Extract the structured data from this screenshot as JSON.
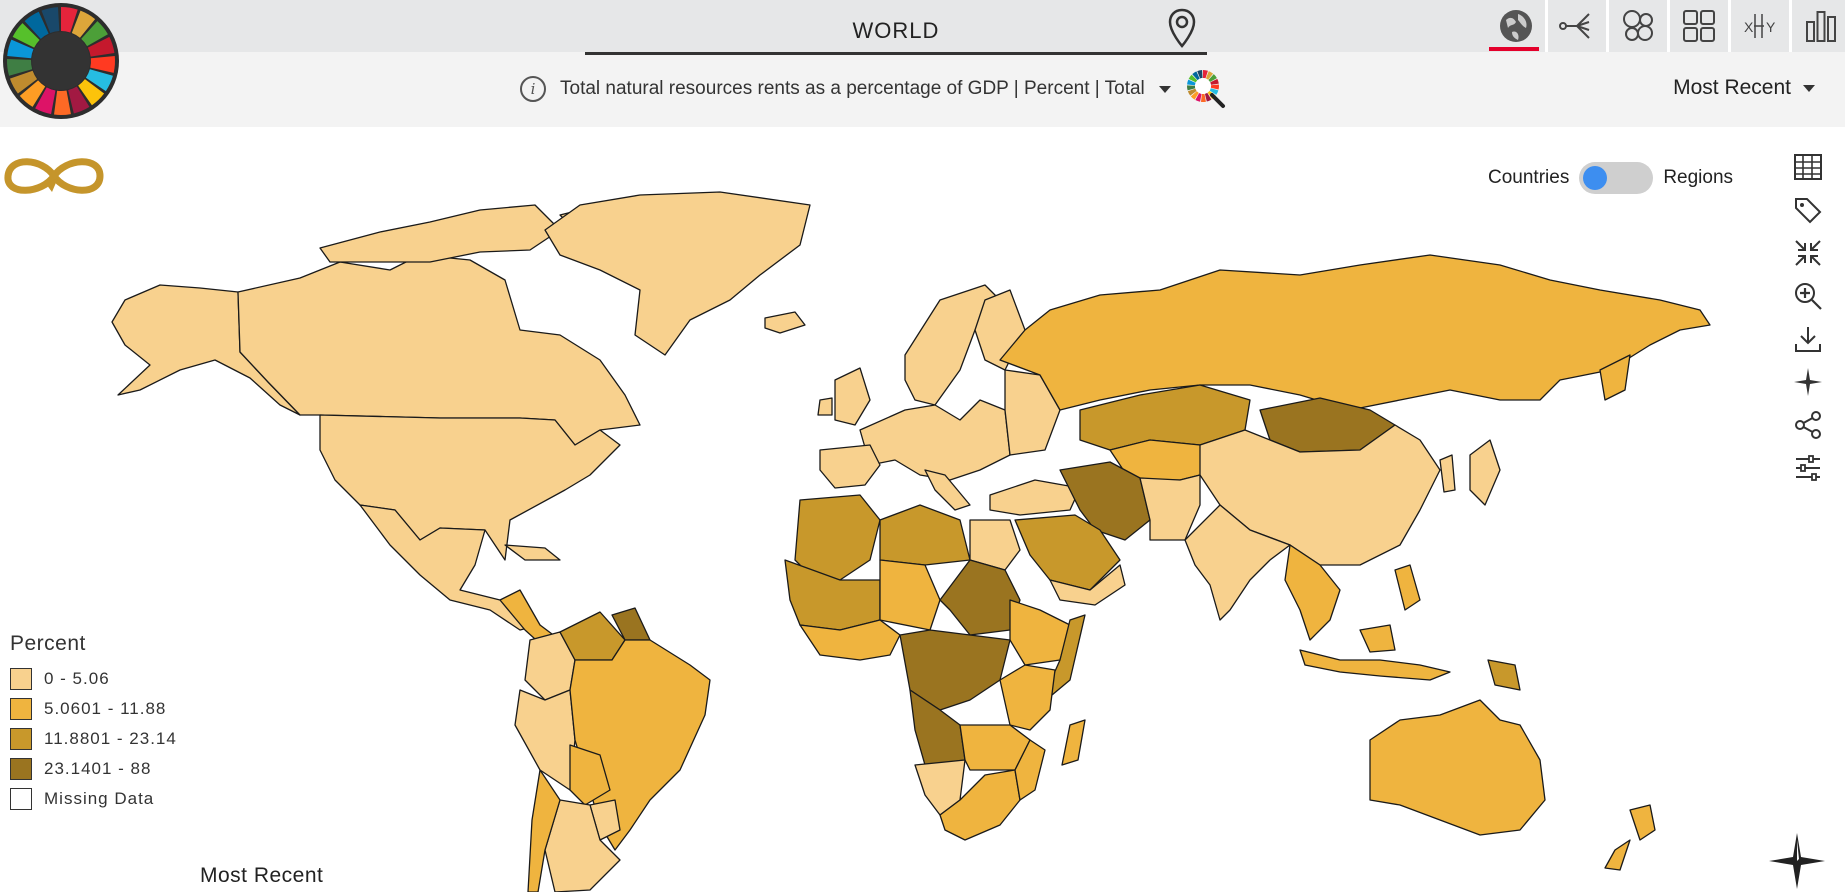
{
  "header": {
    "location": "WORLD",
    "toolbar": [
      {
        "name": "map-view-button",
        "icon": "globe-icon",
        "active": true
      },
      {
        "name": "tree-view-button",
        "icon": "branch-icon",
        "active": false
      },
      {
        "name": "bubble-view-button",
        "icon": "bubbles-icon",
        "active": false
      },
      {
        "name": "grid-view-button",
        "icon": "grid-icon",
        "active": false
      },
      {
        "name": "xy-view-button",
        "icon": "xy-icon",
        "active": false
      },
      {
        "name": "bar-view-button",
        "icon": "bar-chart-icon",
        "active": false
      }
    ]
  },
  "indicator": {
    "label": "Total natural resources rents as a percentage of GDP | Percent | Total"
  },
  "period": {
    "label": "Most Recent"
  },
  "toggle": {
    "left": "Countries",
    "right": "Regions"
  },
  "sidebar_tools": [
    "table-icon",
    "tag-icon",
    "collapse-icon",
    "zoom-in-icon",
    "download-icon",
    "sparkle-icon",
    "share-icon",
    "sliders-icon"
  ],
  "legend": {
    "title": "Percent",
    "items": [
      {
        "label": "0 - 5.06",
        "color": "#f8d18e"
      },
      {
        "label": "5.0601 - 11.88",
        "color": "#efb43f"
      },
      {
        "label": "11.8801 - 23.14",
        "color": "#c8982b"
      },
      {
        "label": "23.1401 - 88",
        "color": "#9a7420"
      },
      {
        "label": "Missing Data",
        "color": "#ffffff"
      }
    ]
  },
  "bottom_label": "Most Recent",
  "colors": {
    "accent": "#e4002b",
    "toggle_knob": "#3d8ef0",
    "loop_logo": "#c5952b"
  }
}
